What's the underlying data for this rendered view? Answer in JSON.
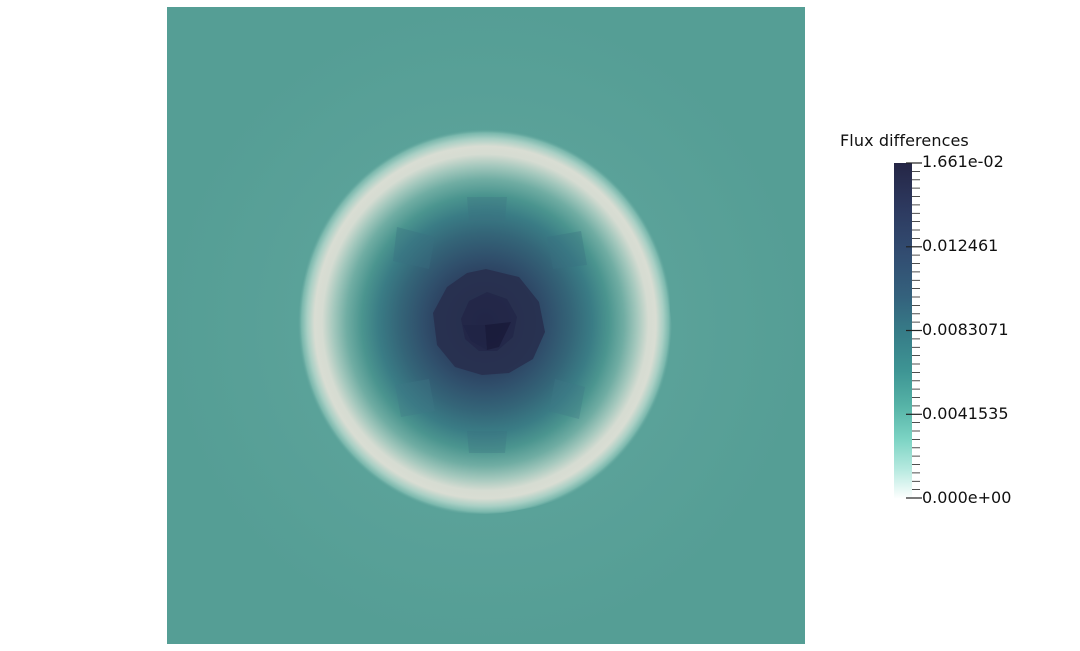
{
  "colorbar": {
    "title": "Flux differences",
    "max_label": "1.661e-02",
    "labels": [
      "0.012461",
      "0.0083071",
      "0.0041535"
    ],
    "min_label": "0.000e+00",
    "min_value": 0.0,
    "max_value": 0.01661,
    "colormap": [
      "#ffffff",
      "#b5e9df",
      "#7bd3c3",
      "#55b2a6",
      "#3e9594",
      "#367b87",
      "#34627d",
      "#324e72",
      "#2d3a60",
      "#252646"
    ]
  },
  "field": {
    "background_color": "#559e95",
    "ring_color": "#d8dcd3",
    "core_color": "#1f2142"
  }
}
